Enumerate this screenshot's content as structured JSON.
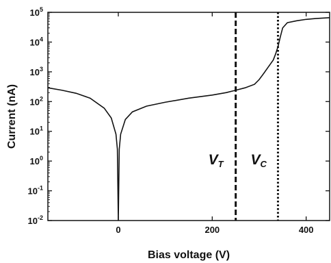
{
  "chart_data": {
    "type": "line",
    "title": "",
    "xlabel": "Bias voltage (V)",
    "ylabel": "Current (nA)",
    "xlim": [
      -150,
      450
    ],
    "ylim": [
      0.01,
      100000
    ],
    "y_scale": "log",
    "x_ticks": [
      0,
      200,
      400
    ],
    "y_ticks": [
      {
        "value": 0.01,
        "base": "10",
        "exp": "-2"
      },
      {
        "value": 0.1,
        "base": "10",
        "exp": "-1"
      },
      {
        "value": 1,
        "base": "10",
        "exp": "0"
      },
      {
        "value": 10,
        "base": "10",
        "exp": "1"
      },
      {
        "value": 100,
        "base": "10",
        "exp": "2"
      },
      {
        "value": 1000,
        "base": "10",
        "exp": "3"
      },
      {
        "value": 10000,
        "base": "10",
        "exp": "4"
      },
      {
        "value": 100000,
        "base": "10",
        "exp": "5"
      }
    ],
    "grid": false,
    "legend": "none",
    "series": [
      {
        "color": "#111111",
        "x": [
          -150,
          -120,
          -90,
          -60,
          -30,
          -15,
          -5,
          -2,
          0,
          2,
          5,
          15,
          30,
          60,
          100,
          150,
          200,
          230,
          250,
          270,
          290,
          300,
          310,
          320,
          330,
          335,
          340,
          345,
          350,
          360,
          380,
          400,
          420,
          450
        ],
        "y": [
          290,
          240,
          190,
          130,
          60,
          28,
          8,
          2.5,
          0.01,
          2.5,
          8,
          25,
          45,
          70,
          95,
          130,
          165,
          200,
          240,
          290,
          380,
          550,
          900,
          1500,
          2500,
          4000,
          7000,
          15000,
          30000,
          45000,
          52000,
          58000,
          62000,
          66000
        ]
      }
    ],
    "annotations": [
      {
        "label": "V",
        "sub": "T",
        "x": 250,
        "line_style": "dashed"
      },
      {
        "label": "V",
        "sub": "C",
        "x": 340,
        "line_style": "dotted"
      }
    ]
  }
}
